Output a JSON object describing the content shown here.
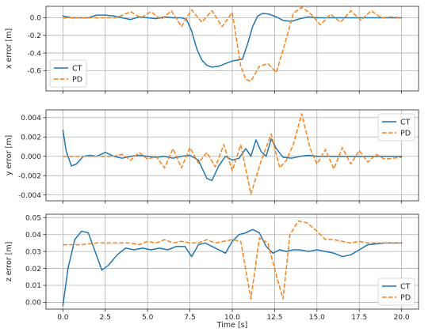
{
  "chart_data": [
    {
      "type": "line",
      "ylabel": "x error [m]",
      "xlim": [
        -1.0,
        21.0
      ],
      "ylim": [
        -0.83,
        0.13
      ],
      "xticks": [
        "0.0",
        "2.5",
        "5.0",
        "7.5",
        "10.0",
        "12.5",
        "15.0",
        "17.5",
        "20.0"
      ],
      "yticks": [
        "0.0",
        "-0.2",
        "-0.4",
        "-0.6"
      ],
      "ytick_values": [
        0.0,
        -0.2,
        -0.4,
        -0.6
      ],
      "grid": true,
      "legend_position": "lower-left",
      "series": [
        {
          "name": "CT",
          "color": "#1f77b4",
          "dash": "solid",
          "points": [
            [
              0,
              0.02
            ],
            [
              0.5,
              0.0
            ],
            [
              1,
              0.0
            ],
            [
              1.5,
              0.0
            ],
            [
              2,
              0.03
            ],
            [
              2.5,
              0.03
            ],
            [
              3,
              0.02
            ],
            [
              3.5,
              0.0
            ],
            [
              4,
              -0.02
            ],
            [
              4.5,
              0.01
            ],
            [
              5,
              0.0
            ],
            [
              5.5,
              -0.01
            ],
            [
              6,
              0.01
            ],
            [
              6.5,
              0.0
            ],
            [
              7,
              0.0
            ],
            [
              7.3,
              -0.02
            ],
            [
              7.6,
              -0.15
            ],
            [
              7.9,
              -0.35
            ],
            [
              8.2,
              -0.48
            ],
            [
              8.5,
              -0.54
            ],
            [
              8.8,
              -0.56
            ],
            [
              9.2,
              -0.55
            ],
            [
              9.6,
              -0.52
            ],
            [
              10,
              -0.49
            ],
            [
              10.3,
              -0.48
            ],
            [
              10.6,
              -0.47
            ],
            [
              10.9,
              -0.3
            ],
            [
              11.2,
              -0.1
            ],
            [
              11.5,
              0.02
            ],
            [
              11.8,
              0.05
            ],
            [
              12.2,
              0.04
            ],
            [
              12.6,
              0.01
            ],
            [
              13,
              -0.03
            ],
            [
              13.5,
              -0.04
            ],
            [
              14,
              -0.01
            ],
            [
              14.5,
              0.01
            ],
            [
              15,
              0.0
            ],
            [
              16,
              0.0
            ],
            [
              17,
              0.0
            ],
            [
              18,
              0.0
            ],
            [
              19,
              0.0
            ],
            [
              20,
              0.0
            ]
          ]
        },
        {
          "name": "PD",
          "color": "#ff7f0e",
          "dash": "dashed",
          "points": [
            [
              0,
              0.0
            ],
            [
              1,
              0.0
            ],
            [
              2,
              0.0
            ],
            [
              3,
              0.0
            ],
            [
              3.4,
              0.02
            ],
            [
              4,
              0.07
            ],
            [
              4.6,
              0.0
            ],
            [
              5.2,
              0.07
            ],
            [
              5.8,
              -0.02
            ],
            [
              6.4,
              0.08
            ],
            [
              7,
              -0.1
            ],
            [
              7.6,
              0.09
            ],
            [
              8.2,
              -0.05
            ],
            [
              8.8,
              0.08
            ],
            [
              9.4,
              -0.1
            ],
            [
              10,
              0.06
            ],
            [
              10.5,
              -0.55
            ],
            [
              10.8,
              -0.7
            ],
            [
              11.1,
              -0.72
            ],
            [
              11.6,
              -0.55
            ],
            [
              12.1,
              -0.52
            ],
            [
              12.6,
              -0.62
            ],
            [
              13.1,
              -0.3
            ],
            [
              13.6,
              0.05
            ],
            [
              14.1,
              0.12
            ],
            [
              14.6,
              0.05
            ],
            [
              15.2,
              -0.08
            ],
            [
              15.8,
              0.04
            ],
            [
              16.4,
              -0.05
            ],
            [
              17,
              0.08
            ],
            [
              17.6,
              -0.03
            ],
            [
              18.2,
              0.08
            ],
            [
              18.8,
              0.0
            ],
            [
              19.4,
              0.01
            ],
            [
              20,
              0.0
            ]
          ]
        }
      ]
    },
    {
      "type": "line",
      "ylabel": "y error [m]",
      "xlim": [
        -1.0,
        21.0
      ],
      "ylim": [
        -0.0046,
        0.0048
      ],
      "xticks": [
        "0.0",
        "2.5",
        "5.0",
        "7.5",
        "10.0",
        "12.5",
        "15.0",
        "17.5",
        "20.0"
      ],
      "yticks": [
        "0.004",
        "0.002",
        "0.000",
        "-0.002",
        "-0.004"
      ],
      "ytick_values": [
        0.004,
        0.002,
        0.0,
        -0.002,
        -0.004
      ],
      "grid": true,
      "legend_position": "upper-right",
      "series": [
        {
          "name": "CT",
          "color": "#1f77b4",
          "dash": "solid",
          "points": [
            [
              0,
              0.0027
            ],
            [
              0.2,
              0.0005
            ],
            [
              0.5,
              -0.001
            ],
            [
              0.8,
              -0.0008
            ],
            [
              1.2,
              0.0
            ],
            [
              1.6,
              0.0001
            ],
            [
              2,
              0.0
            ],
            [
              2.5,
              0.0004
            ],
            [
              3,
              0.0
            ],
            [
              3.5,
              -0.0002
            ],
            [
              4,
              0.0
            ],
            [
              4.5,
              0.0001
            ],
            [
              5,
              0.0
            ],
            [
              5.5,
              -0.0001
            ],
            [
              6,
              0.0
            ],
            [
              6.5,
              -0.0002
            ],
            [
              7,
              0.0
            ],
            [
              7.5,
              0.0001
            ],
            [
              8,
              -0.0004
            ],
            [
              8.5,
              -0.0023
            ],
            [
              8.8,
              -0.0025
            ],
            [
              9.2,
              -0.001
            ],
            [
              9.6,
              0.0
            ],
            [
              10,
              -0.0004
            ],
            [
              10.4,
              -0.0002
            ],
            [
              10.8,
              0.0008
            ],
            [
              11.1,
              0.0
            ],
            [
              11.4,
              0.0017
            ],
            [
              11.7,
              0.0005
            ],
            [
              12.0,
              0.0
            ],
            [
              12.3,
              0.0018
            ],
            [
              12.6,
              0.0008
            ],
            [
              13.0,
              -0.0001
            ],
            [
              13.5,
              -0.0002
            ],
            [
              14,
              0.0
            ],
            [
              14.5,
              0.0001
            ],
            [
              15,
              0.0
            ],
            [
              16,
              0.0
            ],
            [
              17,
              0.0
            ],
            [
              18,
              0.0
            ],
            [
              19,
              0.0
            ],
            [
              20,
              0.0
            ]
          ]
        },
        {
          "name": "PD",
          "color": "#ff7f0e",
          "dash": "dashed",
          "points": [
            [
              0,
              0.0
            ],
            [
              1,
              0.0
            ],
            [
              2,
              0.0
            ],
            [
              3,
              0.0
            ],
            [
              3.5,
              0.0002
            ],
            [
              4,
              -0.0004
            ],
            [
              4.5,
              0.0004
            ],
            [
              5,
              -0.0003
            ],
            [
              5.5,
              0.0
            ],
            [
              6,
              -0.0012
            ],
            [
              6.5,
              0.0008
            ],
            [
              7,
              -0.0012
            ],
            [
              7.5,
              0.0009
            ],
            [
              8,
              -0.0007
            ],
            [
              8.5,
              0.0004
            ],
            [
              9,
              -0.0011
            ],
            [
              9.5,
              0.0012
            ],
            [
              10,
              -0.0015
            ],
            [
              10.5,
              0.0012
            ],
            [
              11.1,
              -0.0039
            ],
            [
              11.7,
              -0.0005
            ],
            [
              12.3,
              0.0023
            ],
            [
              12.8,
              -0.0012
            ],
            [
              13.2,
              -0.0004
            ],
            [
              13.6,
              0.0012
            ],
            [
              14.1,
              0.0044
            ],
            [
              14.6,
              0.0008
            ],
            [
              15,
              -0.0008
            ],
            [
              15.5,
              0.0007
            ],
            [
              16,
              -0.0013
            ],
            [
              16.5,
              0.0009
            ],
            [
              17,
              -0.0008
            ],
            [
              17.5,
              0.0006
            ],
            [
              18,
              -0.0006
            ],
            [
              18.5,
              0.0002
            ],
            [
              19,
              -0.0003
            ],
            [
              20,
              -0.0001
            ]
          ]
        }
      ]
    },
    {
      "type": "line",
      "ylabel": "z error [m]",
      "xlabel": "Time [s]",
      "xlim": [
        -1.0,
        21.0
      ],
      "ylim": [
        -0.004,
        0.052
      ],
      "xticks": [
        "0.0",
        "2.5",
        "5.0",
        "7.5",
        "10.0",
        "12.5",
        "15.0",
        "17.5",
        "20.0"
      ],
      "yticks": [
        "0.05",
        "0.04",
        "0.03",
        "0.02",
        "0.01",
        "0.00"
      ],
      "ytick_values": [
        0.05,
        0.04,
        0.03,
        0.02,
        0.01,
        0.0
      ],
      "grid": true,
      "legend_position": "lower-right",
      "series": [
        {
          "name": "CT",
          "color": "#1f77b4",
          "dash": "solid",
          "points": [
            [
              0,
              -0.002
            ],
            [
              0.3,
              0.02
            ],
            [
              0.7,
              0.037
            ],
            [
              1.1,
              0.042
            ],
            [
              1.5,
              0.041
            ],
            [
              1.9,
              0.03
            ],
            [
              2.3,
              0.019
            ],
            [
              2.7,
              0.022
            ],
            [
              3.2,
              0.028
            ],
            [
              3.7,
              0.032
            ],
            [
              4.2,
              0.031
            ],
            [
              4.7,
              0.032
            ],
            [
              5.2,
              0.031
            ],
            [
              5.7,
              0.032
            ],
            [
              6.2,
              0.031
            ],
            [
              6.7,
              0.033
            ],
            [
              7.2,
              0.033
            ],
            [
              7.6,
              0.027
            ],
            [
              8.0,
              0.034
            ],
            [
              8.4,
              0.035
            ],
            [
              8.8,
              0.033
            ],
            [
              9.2,
              0.031
            ],
            [
              9.6,
              0.029
            ],
            [
              10,
              0.036
            ],
            [
              10.4,
              0.04
            ],
            [
              10.8,
              0.041
            ],
            [
              11.2,
              0.043
            ],
            [
              11.6,
              0.041
            ],
            [
              12,
              0.033
            ],
            [
              12.4,
              0.029
            ],
            [
              12.8,
              0.031
            ],
            [
              13.2,
              0.03
            ],
            [
              13.6,
              0.031
            ],
            [
              14,
              0.031
            ],
            [
              14.5,
              0.03
            ],
            [
              15,
              0.031
            ],
            [
              15.5,
              0.03
            ],
            [
              16,
              0.029
            ],
            [
              16.5,
              0.027
            ],
            [
              17,
              0.028
            ],
            [
              17.5,
              0.031
            ],
            [
              18,
              0.034
            ],
            [
              19,
              0.035
            ],
            [
              20,
              0.035
            ]
          ]
        },
        {
          "name": "PD",
          "color": "#ff7f0e",
          "dash": "dashed",
          "points": [
            [
              0,
              0.034
            ],
            [
              1,
              0.034
            ],
            [
              2,
              0.035
            ],
            [
              3,
              0.035
            ],
            [
              4,
              0.035
            ],
            [
              4.5,
              0.034
            ],
            [
              5,
              0.036
            ],
            [
              5.5,
              0.035
            ],
            [
              6,
              0.037
            ],
            [
              6.5,
              0.035
            ],
            [
              7,
              0.036
            ],
            [
              7.5,
              0.035
            ],
            [
              8,
              0.035
            ],
            [
              8.5,
              0.037
            ],
            [
              9,
              0.035
            ],
            [
              9.5,
              0.036
            ],
            [
              10,
              0.037
            ],
            [
              10.5,
              0.036
            ],
            [
              11.1,
              0.002
            ],
            [
              11.6,
              0.038
            ],
            [
              12.1,
              0.035
            ],
            [
              12.6,
              0.016
            ],
            [
              13.0,
              0.002
            ],
            [
              13.4,
              0.04
            ],
            [
              13.9,
              0.048
            ],
            [
              14.4,
              0.047
            ],
            [
              15,
              0.042
            ],
            [
              15.5,
              0.037
            ],
            [
              16,
              0.037
            ],
            [
              16.5,
              0.036
            ],
            [
              17,
              0.035
            ],
            [
              17.5,
              0.036
            ],
            [
              18,
              0.035
            ],
            [
              19,
              0.035
            ],
            [
              20,
              0.035
            ]
          ]
        }
      ]
    }
  ]
}
